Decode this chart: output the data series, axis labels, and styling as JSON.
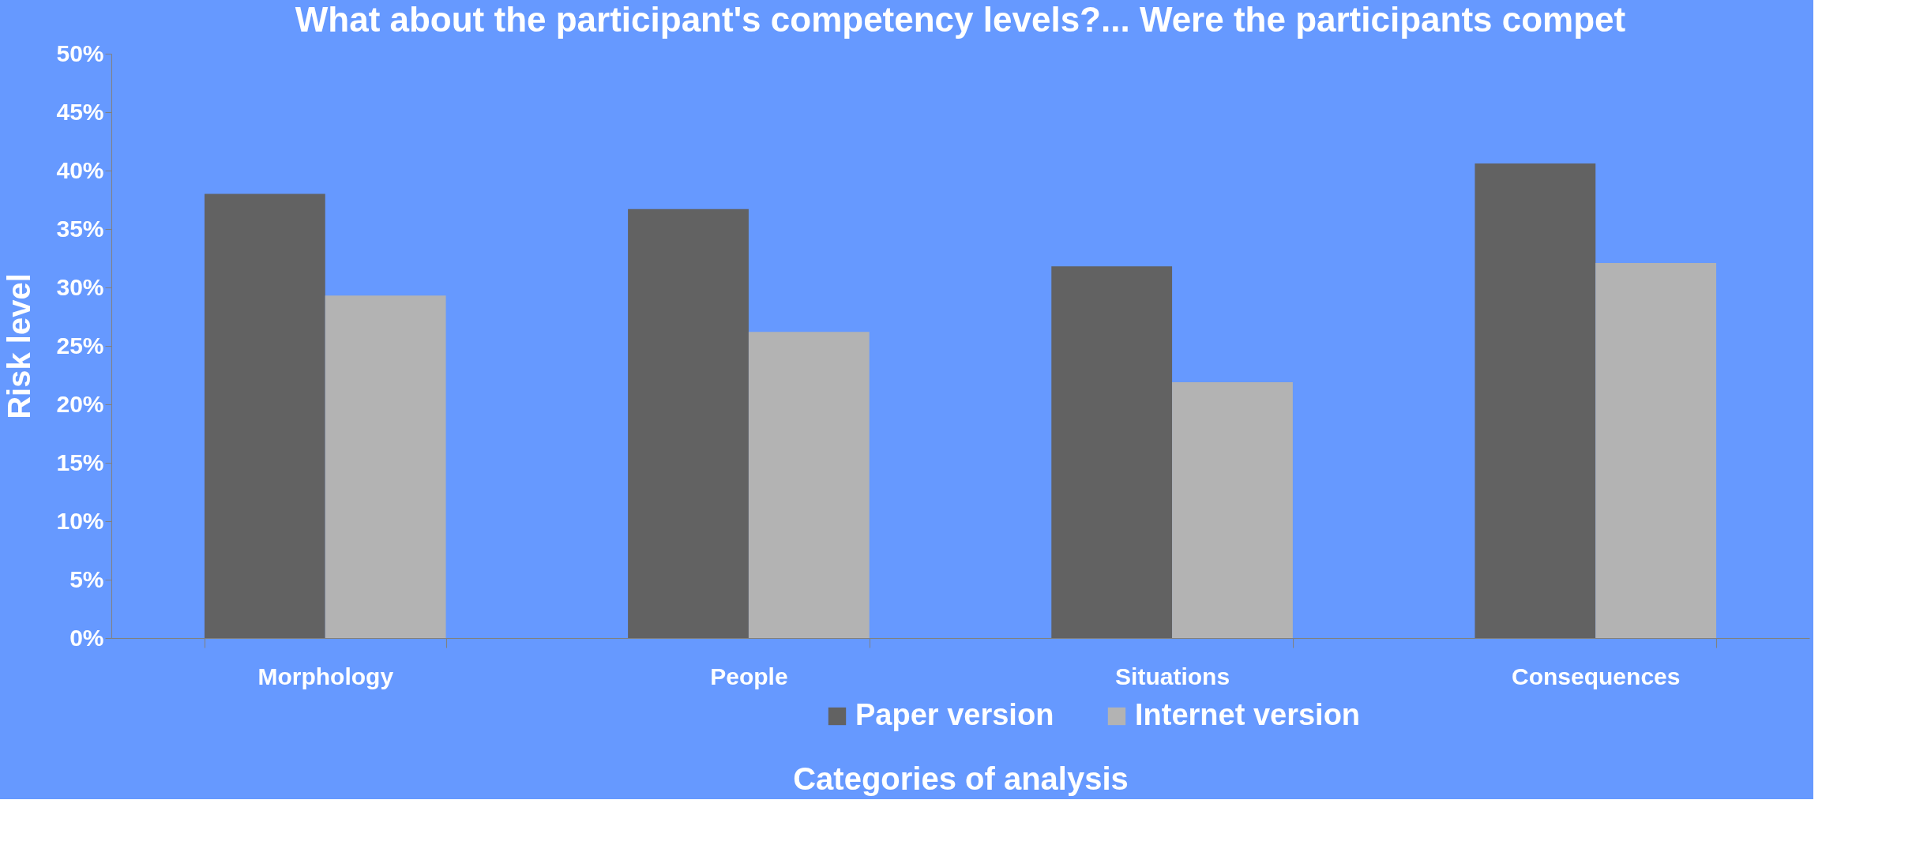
{
  "chart_data": {
    "type": "bar",
    "title": "What about the participant's competency levels?... Were the participants compet",
    "xlabel": "Categories of analysis",
    "ylabel": "Risk  level",
    "categories": [
      "Morphology",
      "People",
      "Situations",
      "Consequences"
    ],
    "series": [
      {
        "name": "Paper version",
        "color": "#626262",
        "values": [
          38.0,
          36.7,
          31.8,
          40.6
        ]
      },
      {
        "name": "Internet version",
        "color": "#b3b3b3",
        "values": [
          29.3,
          26.2,
          21.9,
          32.1
        ]
      }
    ],
    "ylim": [
      0,
      50
    ],
    "yticks": [
      {
        "value": 0,
        "label": "0%"
      },
      {
        "value": 5,
        "label": "5%"
      },
      {
        "value": 10,
        "label": "10%"
      },
      {
        "value": 15,
        "label": "15%"
      },
      {
        "value": 20,
        "label": "20%"
      },
      {
        "value": 25,
        "label": "25%"
      },
      {
        "value": 30,
        "label": "30%"
      },
      {
        "value": 35,
        "label": "35%"
      },
      {
        "value": 40,
        "label": "40%"
      },
      {
        "value": 45,
        "label": "45%"
      },
      {
        "value": 50,
        "label": "50%"
      }
    ],
    "grid": false,
    "legend": "bottom"
  }
}
